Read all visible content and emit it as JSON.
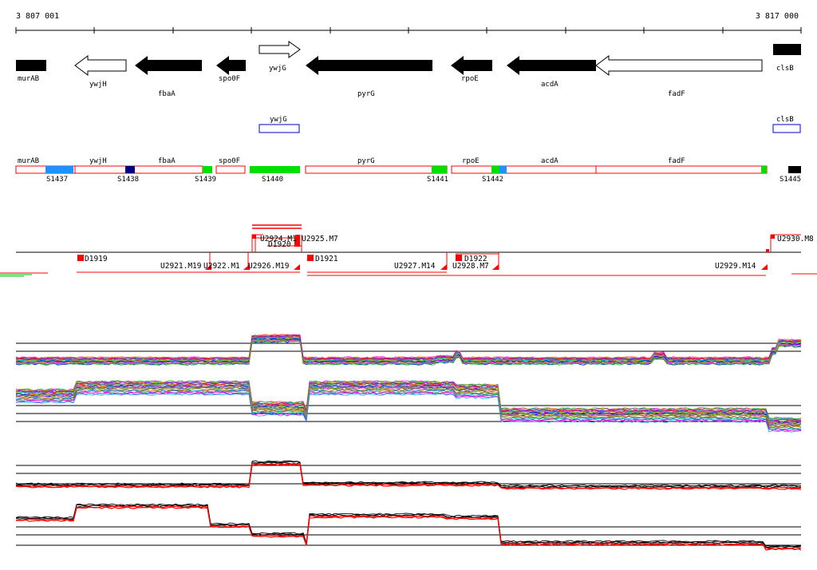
{
  "ruler": {
    "start_label": "3 807 001",
    "end_label": "3 817 000"
  },
  "genes": [
    {
      "label": "murAB",
      "strand": "none",
      "fill": "#000000"
    },
    {
      "label": "ywjH",
      "strand": "left",
      "fill": "#ffffff"
    },
    {
      "label": "fbaA",
      "strand": "left",
      "fill": "#000000"
    },
    {
      "label": "spo0F",
      "strand": "left",
      "fill": "#000000"
    },
    {
      "label": "ywjG",
      "strand": "right",
      "fill": "#ffffff"
    },
    {
      "label": "pyrG",
      "strand": "left",
      "fill": "#000000"
    },
    {
      "label": "rpoE",
      "strand": "left",
      "fill": "#000000"
    },
    {
      "label": "acdA",
      "strand": "left",
      "fill": "#000000"
    },
    {
      "label": "fadF",
      "strand": "left",
      "fill": "#ffffff"
    },
    {
      "label": "clsB",
      "strand": "none",
      "fill": "#000000"
    }
  ],
  "blue_boxes": [
    {
      "label": "ywjG"
    },
    {
      "label": "clsB"
    }
  ],
  "segment_labels": [
    "murAB",
    "ywjH",
    "fbaA",
    "spo0F",
    "pyrG",
    "rpoE",
    "acdA",
    "fadF"
  ],
  "s_labels": [
    "S1437",
    "S1438",
    "S1439",
    "S1440",
    "S1441",
    "S1442",
    "S1445"
  ],
  "features": {
    "d_labels": [
      "D1919",
      "D1920",
      "D1921",
      "D1922"
    ],
    "u_labels": [
      "U2921.M19",
      "U2922.M1",
      "U2926.M19",
      "U2924.M1",
      "U2925.M7",
      "U2927.M14",
      "U2928.M7",
      "U2929.M14",
      "U2930.M8"
    ]
  },
  "colors": {
    "red": "#ff0000",
    "green": "#00e000",
    "light_blue": "#1e90ff",
    "dark_blue": "#000080",
    "blue_outline": "#0000cc"
  }
}
